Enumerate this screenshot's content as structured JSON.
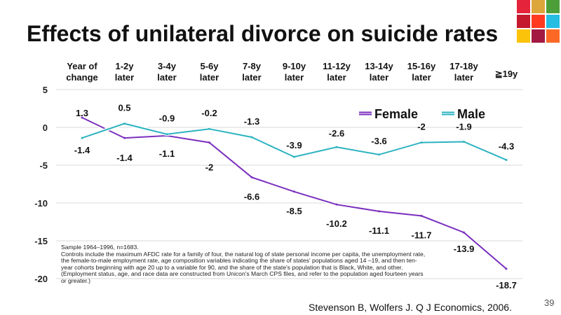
{
  "slide": {
    "title": "Effects of unilateral divorce on suicide rates",
    "note": "Sample 1964–1996, n=1683.\nControls include the maximum AFDC rate for a family of four, the natural log of state personal income per capita, the unemployment rate, the female-to-male employment rate, age composition variables indicating the share of states' populations aged 14 –19, and then ten-year cohorts beginning with age 20 up to a variable for 90, and the share of the state's population that is Black, White, and other. (Employment status, age, and race data are constructed from Unicon's March CPS files, and refer to the population aged fourteen years or greater.)",
    "source": "Stevenson B, Wolfers J. Q J Economics, 2006.",
    "page_number": "39"
  },
  "sdg_icons": {
    "colors": [
      "#E5243B",
      "#DDA63A",
      "#4C9F38",
      "#C5192D",
      "#FF3A21",
      "#26BDE2",
      "#FCC30B",
      "#A21942",
      "#FD6925",
      "#DD1367"
    ]
  },
  "chart_data": {
    "type": "line",
    "title": "Effects of unilateral divorce on suicide rates",
    "categories": [
      "Year of\nchange",
      "1-2y\nlater",
      "3-4y\nlater",
      "5-6y\nlater",
      "7-8y\nlater",
      "9-10y\nlater",
      "11-12y\nlater",
      "13-14y\nlater",
      "15-16y\nlater",
      "17-18y\nlater",
      "≧19y"
    ],
    "series": [
      {
        "name": "Female",
        "color": "#7B2FBE",
        "values": [
          1.3,
          -1.4,
          -1.1,
          -2,
          -6.6,
          -8.5,
          -10.2,
          -11.1,
          -11.7,
          -13.9,
          -18.7
        ],
        "labels": [
          "1.3",
          "-1.4",
          "-1.1",
          "-2",
          "-6.6",
          "-8.5",
          "-10.2",
          "-11.1",
          "-11.7",
          "-13.9",
          "-18.7"
        ]
      },
      {
        "name": "Male",
        "color": "#2BB3C0",
        "values": [
          -1.4,
          0.5,
          -0.9,
          -0.2,
          -1.3,
          -3.9,
          -2.6,
          -3.6,
          -2,
          -1.9,
          -4.3
        ],
        "labels": [
          "-1.4",
          "0.5",
          "-0.9",
          "-0.2",
          "-1.3",
          "-3.9",
          "-2.6",
          "-3.6",
          "-2",
          "-1.9",
          "-4.3"
        ]
      }
    ],
    "yticks": [
      "5",
      "0",
      "-5",
      "-10",
      "-15",
      "-20"
    ],
    "ytick_values": [
      5,
      0,
      -5,
      -10,
      -15,
      -20
    ],
    "ylim": [
      -20,
      5
    ],
    "grid": "horizontal",
    "legend": "top-right"
  }
}
